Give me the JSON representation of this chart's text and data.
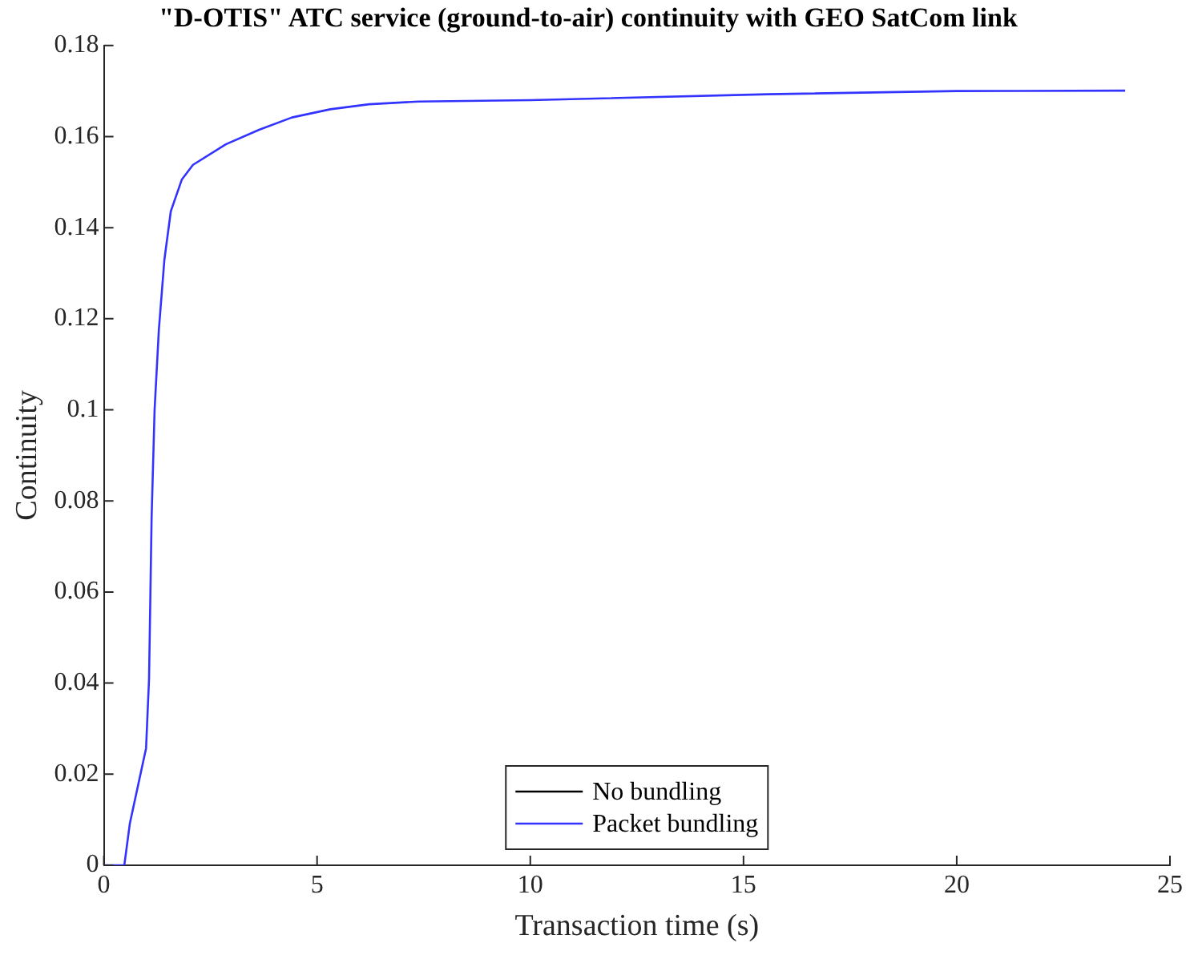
{
  "chart_data": {
    "type": "line",
    "title": "\"D-OTIS\" ATC service (ground-to-air) continuity with GEO SatCom link",
    "xlabel": "Transaction time (s)",
    "ylabel": "Continuity",
    "xlim": [
      0,
      25
    ],
    "xticks": [
      0,
      5,
      10,
      15,
      20,
      25
    ],
    "ylim": [
      0,
      0.18
    ],
    "yticks": [
      0,
      0.02,
      0.04,
      0.06,
      0.08,
      0.1,
      0.12,
      0.14,
      0.16,
      0.18
    ],
    "grid": false,
    "legend": "bottom",
    "marker": "none",
    "line_style": "solid",
    "x": [
      0,
      0.48,
      0.61,
      0.99,
      1.06,
      1.12,
      1.19,
      1.29,
      1.42,
      1.57,
      1.83,
      2.09,
      2.86,
      3.64,
      4.41,
      5.31,
      6.22,
      7.38,
      10,
      15.57,
      20,
      23.95
    ],
    "series": [
      {
        "name": "No bundling",
        "color": "#000000",
        "values": [
          null,
          null,
          null,
          null,
          null,
          null,
          null,
          null,
          null,
          null,
          null,
          null,
          null,
          null,
          null,
          null,
          null,
          null,
          null,
          null,
          null,
          null
        ]
      },
      {
        "name": "Packet bundling",
        "color": "#3333ff",
        "values": [
          0,
          0,
          0.0092,
          0.0257,
          0.041,
          0.0764,
          0.1,
          0.1176,
          0.133,
          0.1436,
          0.1506,
          0.1538,
          0.1583,
          0.1615,
          0.1642,
          0.166,
          0.1671,
          0.1677,
          0.168,
          0.1693,
          0.17,
          0.1701
        ]
      }
    ]
  }
}
